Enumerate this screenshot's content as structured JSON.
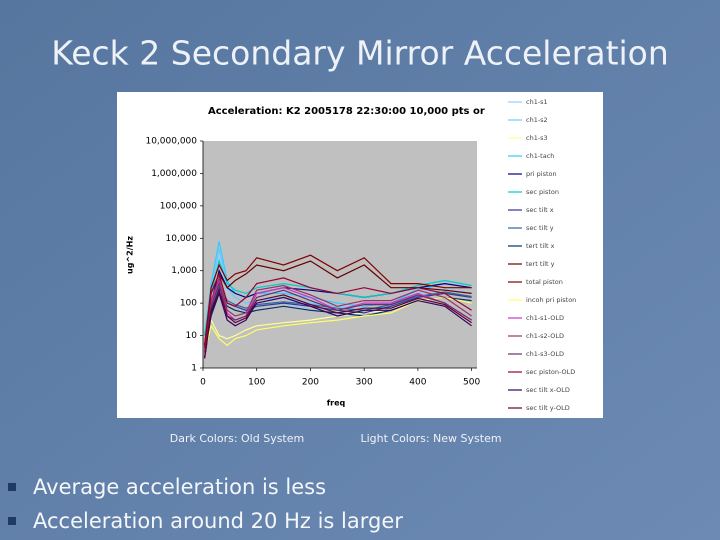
{
  "slide": {
    "title": "Keck 2 Secondary Mirror Acceleration",
    "captions": [
      "Dark Colors: Old System",
      "Light Colors: New System"
    ],
    "bullets": [
      "Average acceleration is less",
      "Acceleration around 20 Hz is larger"
    ]
  },
  "chart_data": {
    "type": "line",
    "title": "Acceleration: K2 2005178 22:30:00 10,000 pts or",
    "x_label": "freq",
    "y_label": "ug^2/Hz",
    "xlim": [
      0,
      510
    ],
    "xticks": [
      0,
      100,
      200,
      300,
      400,
      500
    ],
    "yscale": "log",
    "ylim": [
      1,
      10000000
    ],
    "yticks": [
      1,
      10,
      100,
      {
        "value": 1000,
        "label": "1,000"
      },
      {
        "value": 10000,
        "label": "10,000"
      },
      {
        "value": 100000,
        "label": "100,000"
      },
      {
        "value": 1000000,
        "label": "1,000,000"
      },
      {
        "value": 10000000,
        "label": "10,000,000"
      }
    ],
    "grid": false,
    "legend": "right",
    "x": [
      3,
      15,
      30,
      45,
      60,
      80,
      100,
      150,
      200,
      250,
      300,
      350,
      400,
      450,
      500
    ],
    "series": [
      {
        "name": "ch1-s1",
        "color": "#99ccff",
        "values": [
          10,
          300,
          3000,
          200,
          100,
          60,
          80,
          100,
          60,
          50,
          40,
          60,
          200,
          300,
          200
        ]
      },
      {
        "name": "ch1-s2",
        "color": "#66ccff",
        "values": [
          10,
          200,
          5000,
          300,
          150,
          100,
          120,
          150,
          100,
          80,
          60,
          80,
          300,
          400,
          300
        ]
      },
      {
        "name": "ch1-s3",
        "color": "#ffff99",
        "values": [
          5,
          30,
          10,
          8,
          10,
          15,
          20,
          25,
          30,
          40,
          50,
          60,
          150,
          200,
          150
        ]
      },
      {
        "name": "ch1-tach",
        "color": "#33ccff",
        "values": [
          10,
          400,
          8000,
          500,
          200,
          150,
          200,
          200,
          150,
          100,
          80,
          100,
          250,
          400,
          300
        ]
      },
      {
        "name": "pri piston",
        "color": "#000080",
        "values": [
          5,
          100,
          1000,
          300,
          200,
          150,
          200,
          300,
          250,
          200,
          150,
          200,
          300,
          400,
          300
        ]
      },
      {
        "name": "sec piston",
        "color": "#00cccc",
        "values": [
          10,
          200,
          2000,
          400,
          250,
          200,
          300,
          400,
          300,
          200,
          150,
          200,
          350,
          500,
          350
        ]
      },
      {
        "name": "sec tilt x",
        "color": "#333399",
        "values": [
          3,
          50,
          300,
          100,
          80,
          60,
          80,
          100,
          80,
          60,
          50,
          80,
          150,
          200,
          150
        ]
      },
      {
        "name": "sec tilt y",
        "color": "#336699",
        "values": [
          3,
          60,
          400,
          120,
          90,
          70,
          90,
          110,
          90,
          70,
          60,
          90,
          160,
          220,
          160
        ]
      },
      {
        "name": "tert tilt x",
        "color": "#003366",
        "values": [
          2,
          40,
          200,
          80,
          60,
          50,
          60,
          80,
          60,
          50,
          40,
          60,
          120,
          150,
          120
        ]
      },
      {
        "name": "tert tilt y",
        "color": "#660000",
        "values": [
          5,
          200,
          800,
          300,
          500,
          800,
          1500,
          1000,
          2000,
          600,
          1500,
          300,
          300,
          250,
          200
        ]
      },
      {
        "name": "total piston",
        "color": "#800000",
        "values": [
          5,
          300,
          1500,
          500,
          800,
          1000,
          2500,
          1500,
          3000,
          1000,
          2500,
          400,
          400,
          300,
          300
        ]
      },
      {
        "name": "incoh pri piston",
        "color": "#ffff66",
        "values": [
          3,
          20,
          8,
          5,
          8,
          10,
          15,
          20,
          25,
          30,
          40,
          50,
          120,
          150,
          100
        ]
      },
      {
        "name": "ch1-s1-OLD",
        "color": "#cc33cc",
        "values": [
          3,
          100,
          500,
          50,
          30,
          40,
          200,
          300,
          150,
          60,
          100,
          100,
          200,
          100,
          30
        ]
      },
      {
        "name": "ch1-s2-OLD",
        "color": "#993366",
        "values": [
          3,
          120,
          600,
          60,
          40,
          50,
          250,
          350,
          180,
          80,
          120,
          120,
          250,
          150,
          40
        ]
      },
      {
        "name": "ch1-s3-OLD",
        "color": "#663366",
        "values": [
          2,
          80,
          400,
          40,
          30,
          40,
          150,
          250,
          120,
          60,
          90,
          90,
          180,
          100,
          30
        ]
      },
      {
        "name": "sec piston-OLD",
        "color": "#990033",
        "values": [
          4,
          200,
          800,
          100,
          80,
          150,
          400,
          600,
          300,
          200,
          300,
          200,
          300,
          200,
          60
        ]
      },
      {
        "name": "sec tilt x-OLD",
        "color": "#330066",
        "values": [
          2,
          50,
          200,
          30,
          20,
          30,
          100,
          150,
          80,
          40,
          60,
          60,
          120,
          80,
          20
        ]
      },
      {
        "name": "sec tilt y-OLD",
        "color": "#660033",
        "values": [
          2,
          60,
          250,
          40,
          25,
          35,
          120,
          180,
          90,
          50,
          70,
          70,
          140,
          90,
          25
        ]
      }
    ]
  }
}
